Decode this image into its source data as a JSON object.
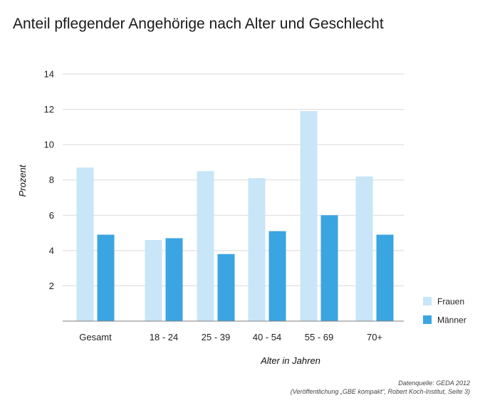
{
  "chart_data": {
    "type": "bar",
    "title": "Anteil pflegender Angehörige nach Alter und Geschlecht",
    "xlabel": "Alter in Jahren",
    "ylabel": "Prozent",
    "ylim": [
      0,
      14
    ],
    "yticks": [
      2,
      4,
      6,
      8,
      10,
      12,
      14
    ],
    "grid": true,
    "legend_position": "right",
    "categories": [
      "Gesamt",
      "18 - 24",
      "25 - 39",
      "40 - 54",
      "55 - 69",
      "70+"
    ],
    "series": [
      {
        "name": "Frauen",
        "color": "#c9e5f8",
        "values": [
          8.7,
          4.6,
          8.5,
          8.1,
          11.9,
          8.2
        ]
      },
      {
        "name": "Männer",
        "color": "#3aa5e1",
        "values": [
          4.9,
          4.7,
          3.8,
          5.1,
          6.0,
          4.9
        ]
      }
    ],
    "source": {
      "line1": "Datenquelle: GEDA 2012",
      "line2": "(Veröffentlichung „GBE kompakt“, Robert Koch-Institut, Seite 3)"
    }
  }
}
